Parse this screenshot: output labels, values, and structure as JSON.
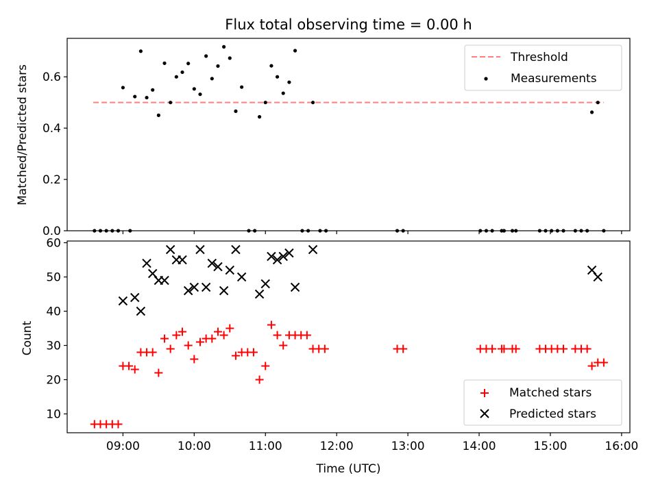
{
  "figure": {
    "title": "Flux total observing time = 0.00 h"
  },
  "colors": {
    "threshold": "#ff7f7f",
    "measurements": "#000000",
    "matched": "#ff0000",
    "predicted": "#000000"
  },
  "chart_data": [
    {
      "type": "scatter",
      "title": "Flux total observing time = 0.00 h",
      "xlabel": "",
      "ylabel": "Matched/Predicted stars",
      "xlim": [
        "08:13",
        "16:07"
      ],
      "ylim": [
        0,
        0.75
      ],
      "x_ticks": [
        "09:00",
        "10:00",
        "11:00",
        "12:00",
        "13:00",
        "14:00",
        "15:00",
        "16:00"
      ],
      "y_ticks": [
        "0.0",
        "0.2",
        "0.4",
        "0.6"
      ],
      "y_tick_values": [
        0,
        0.2,
        0.4,
        0.6
      ],
      "legend_position": "top-right",
      "threshold": {
        "name": "Threshold",
        "value": 0.5,
        "x_range": [
          "08:35",
          "15:45"
        ]
      },
      "series": [
        {
          "name": "Measurements",
          "marker": "dot",
          "points": [
            [
              "08:36",
              0
            ],
            [
              "08:41",
              0
            ],
            [
              "08:46",
              0
            ],
            [
              "08:51",
              0
            ],
            [
              "08:56",
              0
            ],
            [
              "09:06",
              0
            ],
            [
              "09:00",
              0.558
            ],
            [
              "09:10",
              0.523
            ],
            [
              "09:15",
              0.7
            ],
            [
              "09:20",
              0.519
            ],
            [
              "09:25",
              0.549
            ],
            [
              "09:30",
              0.45
            ],
            [
              "09:35",
              0.653
            ],
            [
              "09:40",
              0.5
            ],
            [
              "09:45",
              0.6
            ],
            [
              "09:50",
              0.618
            ],
            [
              "09:55",
              0.652
            ],
            [
              "10:00",
              0.553
            ],
            [
              "10:05",
              0.532
            ],
            [
              "10:10",
              0.681
            ],
            [
              "10:15",
              0.593
            ],
            [
              "10:20",
              0.642
            ],
            [
              "10:25",
              0.717
            ],
            [
              "10:30",
              0.673
            ],
            [
              "10:35",
              0.466
            ],
            [
              "10:40",
              0.56
            ],
            [
              "10:46",
              0
            ],
            [
              "10:51",
              0
            ],
            [
              "10:55",
              0.444
            ],
            [
              "11:00",
              0.5
            ],
            [
              "11:05",
              0.643
            ],
            [
              "11:10",
              0.6
            ],
            [
              "11:15",
              0.536
            ],
            [
              "11:20",
              0.579
            ],
            [
              "11:25",
              0.702
            ],
            [
              "11:31",
              0
            ],
            [
              "11:36",
              0
            ],
            [
              "11:40",
              0.5
            ],
            [
              "11:46",
              0
            ],
            [
              "11:51",
              0
            ],
            [
              "12:51",
              0
            ],
            [
              "12:56",
              0
            ],
            [
              "14:01",
              0
            ],
            [
              "14:06",
              0
            ],
            [
              "14:11",
              0
            ],
            [
              "14:19",
              0
            ],
            [
              "14:21",
              0
            ],
            [
              "14:28",
              0
            ],
            [
              "14:31",
              0
            ],
            [
              "14:51",
              0
            ],
            [
              "14:56",
              0
            ],
            [
              "15:01",
              0
            ],
            [
              "15:06",
              0
            ],
            [
              "15:11",
              0
            ],
            [
              "15:21",
              0
            ],
            [
              "15:26",
              0
            ],
            [
              "15:31",
              0
            ],
            [
              "15:35",
              0.462
            ],
            [
              "15:40",
              0.5
            ],
            [
              "15:45",
              0
            ]
          ]
        }
      ]
    },
    {
      "type": "scatter",
      "xlabel": "Time (UTC)",
      "ylabel": "Count",
      "xlim": [
        "08:13",
        "16:07"
      ],
      "ylim": [
        4.5,
        60.5
      ],
      "x_ticks": [
        "09:00",
        "10:00",
        "11:00",
        "12:00",
        "13:00",
        "14:00",
        "15:00",
        "16:00"
      ],
      "y_ticks": [
        "10",
        "20",
        "30",
        "40",
        "50",
        "60"
      ],
      "y_tick_values": [
        10,
        20,
        30,
        40,
        50,
        60
      ],
      "legend_position": "bottom-right",
      "series": [
        {
          "name": "Matched stars",
          "marker": "plus",
          "points": [
            [
              "08:36",
              7
            ],
            [
              "08:41",
              7
            ],
            [
              "08:46",
              7
            ],
            [
              "08:51",
              7
            ],
            [
              "08:56",
              7
            ],
            [
              "09:00",
              24
            ],
            [
              "09:05",
              24
            ],
            [
              "09:10",
              23
            ],
            [
              "09:15",
              28
            ],
            [
              "09:20",
              28
            ],
            [
              "09:25",
              28
            ],
            [
              "09:30",
              22
            ],
            [
              "09:35",
              32
            ],
            [
              "09:40",
              29
            ],
            [
              "09:45",
              33
            ],
            [
              "09:50",
              34
            ],
            [
              "09:55",
              30
            ],
            [
              "10:00",
              26
            ],
            [
              "10:05",
              31
            ],
            [
              "10:10",
              32
            ],
            [
              "10:15",
              32
            ],
            [
              "10:20",
              34
            ],
            [
              "10:25",
              33
            ],
            [
              "10:30",
              35
            ],
            [
              "10:35",
              27
            ],
            [
              "10:40",
              28
            ],
            [
              "10:45",
              28
            ],
            [
              "10:50",
              28
            ],
            [
              "10:55",
              20
            ],
            [
              "11:00",
              24
            ],
            [
              "11:05",
              36
            ],
            [
              "11:10",
              33
            ],
            [
              "11:15",
              30
            ],
            [
              "11:20",
              33
            ],
            [
              "11:25",
              33
            ],
            [
              "11:30",
              33
            ],
            [
              "11:35",
              33
            ],
            [
              "11:40",
              29
            ],
            [
              "11:45",
              29
            ],
            [
              "11:50",
              29
            ],
            [
              "12:51",
              29
            ],
            [
              "12:56",
              29
            ],
            [
              "14:01",
              29
            ],
            [
              "14:06",
              29
            ],
            [
              "14:11",
              29
            ],
            [
              "14:19",
              29
            ],
            [
              "14:21",
              29
            ],
            [
              "14:28",
              29
            ],
            [
              "14:31",
              29
            ],
            [
              "14:51",
              29
            ],
            [
              "14:56",
              29
            ],
            [
              "15:01",
              29
            ],
            [
              "15:06",
              29
            ],
            [
              "15:11",
              29
            ],
            [
              "15:21",
              29
            ],
            [
              "15:26",
              29
            ],
            [
              "15:31",
              29
            ],
            [
              "15:35",
              24
            ],
            [
              "15:40",
              25
            ],
            [
              "15:45",
              25
            ]
          ]
        },
        {
          "name": "Predicted stars",
          "marker": "x",
          "points": [
            [
              "09:00",
              43
            ],
            [
              "09:10",
              44
            ],
            [
              "09:15",
              40
            ],
            [
              "09:20",
              54
            ],
            [
              "09:25",
              51
            ],
            [
              "09:30",
              49
            ],
            [
              "09:35",
              49
            ],
            [
              "09:40",
              58
            ],
            [
              "09:45",
              55
            ],
            [
              "09:50",
              55
            ],
            [
              "09:55",
              46
            ],
            [
              "10:00",
              47
            ],
            [
              "10:05",
              58
            ],
            [
              "10:10",
              47
            ],
            [
              "10:15",
              54
            ],
            [
              "10:20",
              53
            ],
            [
              "10:25",
              46
            ],
            [
              "10:30",
              52
            ],
            [
              "10:35",
              58
            ],
            [
              "10:40",
              50
            ],
            [
              "10:55",
              45
            ],
            [
              "11:00",
              48
            ],
            [
              "11:05",
              56
            ],
            [
              "11:10",
              55
            ],
            [
              "11:15",
              56
            ],
            [
              "11:20",
              57
            ],
            [
              "11:25",
              47
            ],
            [
              "11:40",
              58
            ],
            [
              "15:35",
              52
            ],
            [
              "15:40",
              50
            ]
          ]
        }
      ]
    }
  ]
}
